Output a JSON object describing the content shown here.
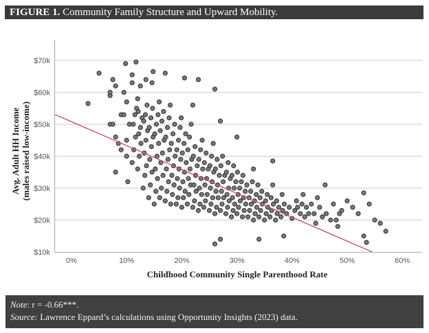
{
  "header": {
    "figure_label": "FIGURE 1.",
    "title": "Community Family Structure and Upward Mobility."
  },
  "footer": {
    "note_label": "Note",
    "note_text": ": r = -0.66***.",
    "source_label": "Source:",
    "source_text": " Lawrence Eppard’s calculations using Opportunity Insights (2023) data."
  },
  "chart_data": {
    "type": "scatter",
    "title": "Community Family Structure and Upward Mobility.",
    "xlabel": "Childhood Community Single Parenthood Rate",
    "ylabel": [
      "Avg. Adult HH Income",
      "(males raised low-income)"
    ],
    "xlim": [
      -3,
      64
    ],
    "ylim": [
      10,
      70
    ],
    "x_ticks": [
      0,
      10,
      20,
      30,
      40,
      50,
      60
    ],
    "x_tick_labels": [
      "0%",
      "10%",
      "20%",
      "30%",
      "40%",
      "50%",
      "60%"
    ],
    "y_ticks": [
      10,
      20,
      30,
      40,
      50,
      60,
      70
    ],
    "y_tick_labels": [
      "$10k",
      "$20k",
      "$30k",
      "$40k",
      "$50k",
      "$60k",
      "$70k"
    ],
    "grid": "horizontal",
    "point_color": "#777777",
    "point_edge_color": "#333333",
    "trendline": {
      "color": "#c9566e",
      "intercept": 50.8,
      "slope": -0.748
    },
    "points": [
      [
        3,
        56.5
      ],
      [
        5,
        66
      ],
      [
        7,
        59
      ],
      [
        7,
        60
      ],
      [
        7.5,
        64
      ],
      [
        8,
        62
      ],
      [
        7,
        50
      ],
      [
        7.5,
        50
      ],
      [
        8,
        35
      ],
      [
        8,
        46
      ],
      [
        8.5,
        44
      ],
      [
        9,
        42
      ],
      [
        9,
        53
      ],
      [
        9.5,
        53
      ],
      [
        9.5,
        60
      ],
      [
        10,
        57
      ],
      [
        10,
        45
      ],
      [
        10,
        40
      ],
      [
        10.2,
        32
      ],
      [
        9.8,
        69
      ],
      [
        10.5,
        50
      ],
      [
        11.7,
        69.5
      ],
      [
        11,
        65.5
      ],
      [
        11,
        63
      ],
      [
        12,
        58
      ],
      [
        12.5,
        62
      ],
      [
        13.5,
        64
      ],
      [
        14.8,
        66.5
      ],
      [
        14.6,
        63
      ],
      [
        17,
        66
      ],
      [
        20.5,
        64.5
      ],
      [
        23,
        64
      ],
      [
        26,
        61
      ],
      [
        22,
        56
      ],
      [
        27,
        51
      ],
      [
        30,
        46
      ],
      [
        33,
        36
      ],
      [
        36.5,
        38.5
      ],
      [
        26,
        12.5
      ],
      [
        27,
        14
      ],
      [
        34,
        14
      ],
      [
        38.5,
        15
      ],
      [
        53,
        15
      ],
      [
        53.5,
        13
      ],
      [
        57,
        16.5
      ],
      [
        53,
        28.5
      ],
      [
        54,
        25
      ],
      [
        55,
        20
      ],
      [
        52,
        22
      ],
      [
        50,
        26
      ],
      [
        46,
        31
      ],
      [
        51,
        24
      ],
      [
        48,
        20
      ],
      [
        45,
        24
      ],
      [
        44,
        22
      ],
      [
        42,
        28
      ],
      [
        40,
        20.5
      ],
      [
        41,
        24
      ],
      [
        49,
        23
      ],
      [
        56,
        19
      ],
      [
        11,
        38
      ],
      [
        11.3,
        42
      ],
      [
        11.6,
        46
      ],
      [
        11.2,
        50
      ],
      [
        11.5,
        53
      ],
      [
        11.8,
        55
      ],
      [
        12,
        36
      ],
      [
        12.3,
        40
      ],
      [
        12.6,
        44
      ],
      [
        12.2,
        47
      ],
      [
        12.5,
        49
      ],
      [
        12.8,
        52
      ],
      [
        12.1,
        54
      ],
      [
        13,
        30
      ],
      [
        13.3,
        34
      ],
      [
        13.6,
        37
      ],
      [
        13.2,
        41
      ],
      [
        13.5,
        45
      ],
      [
        13.8,
        48
      ],
      [
        13.1,
        51
      ],
      [
        13.4,
        53
      ],
      [
        13.7,
        56
      ],
      [
        14,
        27
      ],
      [
        14.3,
        31
      ],
      [
        14.6,
        35
      ],
      [
        14.2,
        39
      ],
      [
        14.5,
        43
      ],
      [
        14.8,
        46
      ],
      [
        14.1,
        49
      ],
      [
        14.4,
        52
      ],
      [
        14.7,
        55
      ],
      [
        15,
        25
      ],
      [
        15.3,
        29
      ],
      [
        15.6,
        33
      ],
      [
        15.2,
        36
      ],
      [
        15.5,
        40
      ],
      [
        15.8,
        44
      ],
      [
        15.1,
        47
      ],
      [
        15.4,
        50
      ],
      [
        15.7,
        53
      ],
      [
        15.9,
        57
      ],
      [
        16,
        27
      ],
      [
        16.3,
        30
      ],
      [
        16.6,
        34
      ],
      [
        16.2,
        38
      ],
      [
        16.5,
        41
      ],
      [
        16.8,
        45
      ],
      [
        16.1,
        48
      ],
      [
        16.4,
        51
      ],
      [
        16.7,
        54
      ],
      [
        17,
        26
      ],
      [
        17.3,
        29
      ],
      [
        17.6,
        32
      ],
      [
        17.2,
        36
      ],
      [
        17.5,
        39
      ],
      [
        17.8,
        42
      ],
      [
        17.1,
        46
      ],
      [
        17.4,
        49
      ],
      [
        17.7,
        52
      ],
      [
        17.9,
        56
      ],
      [
        18,
        25
      ],
      [
        18.3,
        28
      ],
      [
        18.6,
        31
      ],
      [
        18.2,
        34
      ],
      [
        18.5,
        37
      ],
      [
        18.8,
        40
      ],
      [
        18.1,
        44
      ],
      [
        18.4,
        47
      ],
      [
        18.7,
        50
      ],
      [
        19,
        25
      ],
      [
        19.3,
        27
      ],
      [
        19.6,
        30
      ],
      [
        19.2,
        33
      ],
      [
        19.5,
        36
      ],
      [
        19.8,
        39
      ],
      [
        19.1,
        42
      ],
      [
        19.4,
        45
      ],
      [
        19.7,
        49
      ],
      [
        19.9,
        52
      ],
      [
        20,
        24
      ],
      [
        20.3,
        27
      ],
      [
        20.6,
        29
      ],
      [
        20.2,
        32
      ],
      [
        20.5,
        35
      ],
      [
        20.8,
        38
      ],
      [
        20.1,
        41
      ],
      [
        20.4,
        44
      ],
      [
        20.7,
        47
      ],
      [
        21,
        25
      ],
      [
        21.3,
        28
      ],
      [
        21.6,
        31
      ],
      [
        21.2,
        33
      ],
      [
        21.5,
        36
      ],
      [
        21.8,
        39
      ],
      [
        21.1,
        42
      ],
      [
        21.4,
        46
      ],
      [
        21.7,
        50
      ],
      [
        22,
        24
      ],
      [
        22.3,
        26
      ],
      [
        22.6,
        29
      ],
      [
        22.2,
        31
      ],
      [
        22.5,
        34
      ],
      [
        22.8,
        37
      ],
      [
        22.1,
        40
      ],
      [
        22.4,
        43
      ],
      [
        23,
        23
      ],
      [
        23.3,
        25
      ],
      [
        23.6,
        28
      ],
      [
        23.2,
        30
      ],
      [
        23.5,
        33
      ],
      [
        23.8,
        36
      ],
      [
        23.1,
        39
      ],
      [
        23.4,
        42
      ],
      [
        23.7,
        45
      ],
      [
        24,
        24
      ],
      [
        24.3,
        26
      ],
      [
        24.6,
        28
      ],
      [
        24.2,
        31
      ],
      [
        24.5,
        33
      ],
      [
        24.8,
        36
      ],
      [
        24.1,
        38
      ],
      [
        24.4,
        41
      ],
      [
        25,
        23
      ],
      [
        25.3,
        25
      ],
      [
        25.6,
        27
      ],
      [
        25.2,
        30
      ],
      [
        25.5,
        32
      ],
      [
        25.8,
        35
      ],
      [
        25.1,
        37
      ],
      [
        25.4,
        40
      ],
      [
        25.7,
        44
      ],
      [
        26,
        22
      ],
      [
        26.3,
        24
      ],
      [
        26.6,
        27
      ],
      [
        26.2,
        29
      ],
      [
        26.5,
        31
      ],
      [
        26.8,
        34
      ],
      [
        26.1,
        36
      ],
      [
        26.4,
        39
      ],
      [
        27,
        23
      ],
      [
        27.3,
        25
      ],
      [
        27.6,
        27
      ],
      [
        27.2,
        29
      ],
      [
        27.5,
        32
      ],
      [
        27.8,
        34
      ],
      [
        27.1,
        37
      ],
      [
        27.4,
        40
      ],
      [
        28,
        22
      ],
      [
        28.3,
        24
      ],
      [
        28.6,
        26
      ],
      [
        28.2,
        28
      ],
      [
        28.5,
        30
      ],
      [
        28.8,
        33
      ],
      [
        28.1,
        35
      ],
      [
        28.4,
        38
      ],
      [
        29,
        21
      ],
      [
        29.3,
        23
      ],
      [
        29.6,
        25
      ],
      [
        29.2,
        27
      ],
      [
        29.5,
        30
      ],
      [
        29.8,
        32
      ],
      [
        29.1,
        34
      ],
      [
        29.4,
        37
      ],
      [
        30,
        22
      ],
      [
        30.3,
        24
      ],
      [
        30.6,
        26
      ],
      [
        30.2,
        28
      ],
      [
        30.5,
        30
      ],
      [
        30.8,
        32
      ],
      [
        30.1,
        35
      ],
      [
        31,
        21
      ],
      [
        31.3,
        23
      ],
      [
        31.6,
        25
      ],
      [
        31.2,
        27
      ],
      [
        31.5,
        29
      ],
      [
        31.8,
        31
      ],
      [
        31.1,
        34
      ],
      [
        32,
        21
      ],
      [
        32.3,
        23
      ],
      [
        32.6,
        25
      ],
      [
        32.2,
        27
      ],
      [
        32.5,
        29
      ],
      [
        32.8,
        32
      ],
      [
        33,
        20
      ],
      [
        33.3,
        22
      ],
      [
        33.6,
        24
      ],
      [
        33.2,
        26
      ],
      [
        33.5,
        28
      ],
      [
        33.8,
        31
      ],
      [
        34,
        21
      ],
      [
        34.3,
        23
      ],
      [
        34.6,
        25
      ],
      [
        34.2,
        27
      ],
      [
        34.5,
        29
      ],
      [
        35,
        20
      ],
      [
        35.3,
        22
      ],
      [
        35.6,
        24
      ],
      [
        35.2,
        26
      ],
      [
        35.5,
        28
      ],
      [
        36,
        21
      ],
      [
        36.3,
        23
      ],
      [
        36.6,
        25
      ],
      [
        36.2,
        27
      ],
      [
        36.5,
        31
      ],
      [
        37,
        20
      ],
      [
        37.3,
        22
      ],
      [
        37.6,
        24
      ],
      [
        37.2,
        26
      ],
      [
        38,
        21
      ],
      [
        38.3,
        23
      ],
      [
        38.6,
        25
      ],
      [
        38.2,
        28
      ],
      [
        39,
        22
      ],
      [
        39.5,
        24
      ],
      [
        40.5,
        23
      ],
      [
        40.8,
        26
      ],
      [
        41.5,
        22
      ],
      [
        41.8,
        25
      ],
      [
        42.3,
        21
      ],
      [
        42.6,
        24
      ],
      [
        43,
        22
      ],
      [
        43.5,
        25
      ],
      [
        44.3,
        19
      ],
      [
        44.6,
        27
      ],
      [
        45.5,
        21
      ],
      [
        46.2,
        22
      ],
      [
        47,
        20
      ],
      [
        47.5,
        25
      ],
      [
        48.3,
        18
      ],
      [
        48.6,
        22
      ]
    ]
  }
}
